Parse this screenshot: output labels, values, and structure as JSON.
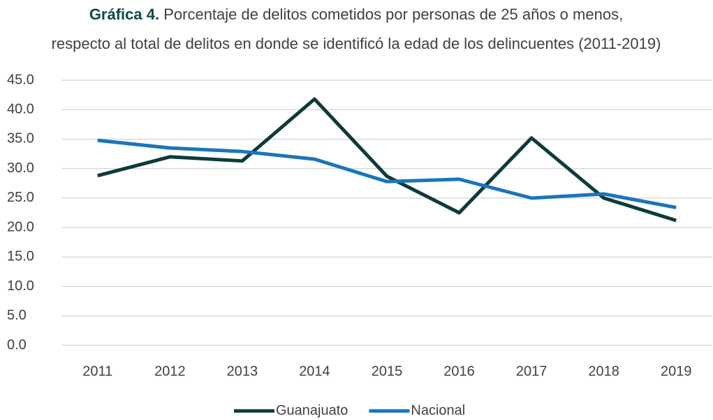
{
  "chart_data": {
    "type": "line",
    "title_label": "Gráfica 4.",
    "title": [
      "Porcentaje de delitos cometidos por personas de 25 años o menos,",
      "respecto al total de delitos en donde se identificó la edad de los delincuentes (2011-2019)"
    ],
    "categories": [
      "2011",
      "2012",
      "2013",
      "2014",
      "2015",
      "2016",
      "2017",
      "2018",
      "2019"
    ],
    "series": [
      {
        "name": "Guanajuato",
        "color": "#0d3b3a",
        "values": [
          28.8,
          32.0,
          31.3,
          41.8,
          28.7,
          22.5,
          35.2,
          25.0,
          21.2
        ]
      },
      {
        "name": "Nacional",
        "color": "#1a75bb",
        "values": [
          34.8,
          33.5,
          32.9,
          31.6,
          27.8,
          28.2,
          25.0,
          25.7,
          23.4
        ]
      }
    ],
    "ylim": [
      0,
      45
    ],
    "yticks": [
      {
        "value": 0,
        "label": "0.0"
      },
      {
        "value": 5,
        "label": "5.0"
      },
      {
        "value": 10,
        "label": "10.0"
      },
      {
        "value": 15,
        "label": "15.0"
      },
      {
        "value": 20,
        "label": "20.0"
      },
      {
        "value": 25,
        "label": "25.0"
      },
      {
        "value": 30,
        "label": "30.0"
      },
      {
        "value": 35,
        "label": "35.0"
      },
      {
        "value": 40,
        "label": "40.0"
      },
      {
        "value": 45,
        "label": "45.0"
      }
    ],
    "grid": true,
    "legend": "bottom"
  }
}
